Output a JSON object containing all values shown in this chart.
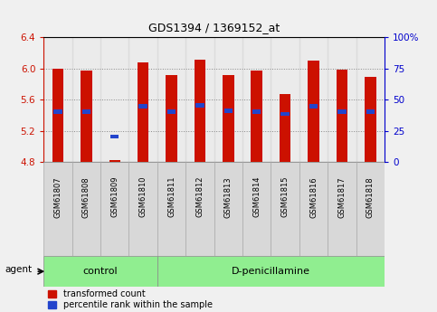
{
  "title": "GDS1394 / 1369152_at",
  "samples": [
    "GSM61807",
    "GSM61808",
    "GSM61809",
    "GSM61810",
    "GSM61811",
    "GSM61812",
    "GSM61813",
    "GSM61814",
    "GSM61815",
    "GSM61816",
    "GSM61817",
    "GSM61818"
  ],
  "bar_tops": [
    6.0,
    5.97,
    4.83,
    6.08,
    5.92,
    6.12,
    5.92,
    5.98,
    5.67,
    6.1,
    5.99,
    5.9
  ],
  "blue_y": [
    5.45,
    5.45,
    5.13,
    5.52,
    5.45,
    5.53,
    5.46,
    5.45,
    5.42,
    5.52,
    5.45,
    5.45
  ],
  "bar_bottom": 4.8,
  "ymin": 4.8,
  "ymax": 6.4,
  "y_ticks": [
    4.8,
    5.2,
    5.6,
    6.0,
    6.4
  ],
  "right_y_ticks": [
    0,
    25,
    50,
    75,
    100
  ],
  "right_y_labels": [
    "0",
    "25",
    "50",
    "75",
    "100%"
  ],
  "bar_color": "#cc1100",
  "blue_color": "#2244cc",
  "control_count": 4,
  "control_label": "control",
  "treatment_label": "D-penicillamine",
  "agent_label": "agent",
  "legend_red_label": "transformed count",
  "legend_blue_label": "percentile rank within the sample",
  "group_bg": "#90ee90",
  "tick_bg": "#d8d8d8",
  "xlabel_color": "#cc1100",
  "ylabel_right_color": "#0000cc",
  "fig_bg": "#f0f0f0"
}
